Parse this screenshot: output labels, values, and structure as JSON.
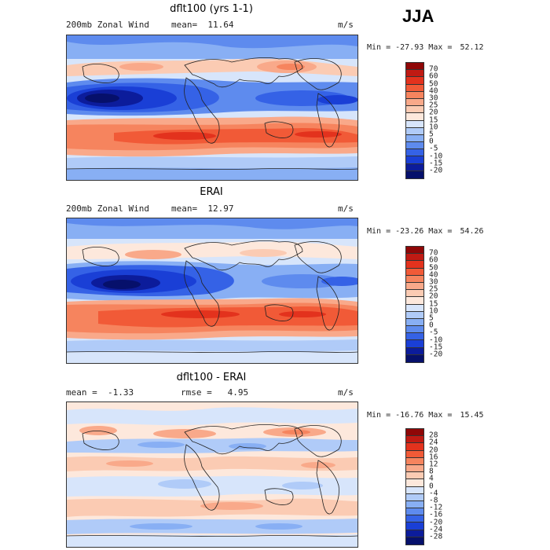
{
  "season": "JJA",
  "panels": [
    {
      "title": "dflt100 (yrs 1-1)",
      "left_label": "200mb Zonal Wind",
      "stat_label": "mean=",
      "stat_value": "11.64",
      "stat2_label": "",
      "stat2_value": "",
      "units": "m/s",
      "min_label": "Min =",
      "min_value": "-27.93",
      "max_label": "Max =",
      "max_value": "52.12",
      "levels": [
        "70",
        "60",
        "50",
        "40",
        "30",
        "25",
        "20",
        "15",
        "10",
        "5",
        "0",
        "-5",
        "-10",
        "-15",
        "-20"
      ],
      "colors": [
        "#8f0707",
        "#c01a13",
        "#e3321d",
        "#f15a37",
        "#f6845e",
        "#f9a98a",
        "#fbcbb3",
        "#fde8dc",
        "#d7e5fb",
        "#b0cbf8",
        "#88aff4",
        "#5e8bee",
        "#3562e6",
        "#1a3fd6",
        "#0c1c9b",
        "#06106b"
      ]
    },
    {
      "title": "ERAI",
      "left_label": "200mb Zonal Wind",
      "stat_label": "mean=",
      "stat_value": "12.97",
      "stat2_label": "",
      "stat2_value": "",
      "units": "m/s",
      "min_label": "Min =",
      "min_value": "-23.26",
      "max_label": "Max =",
      "max_value": "54.26",
      "levels": [
        "70",
        "60",
        "50",
        "40",
        "30",
        "25",
        "20",
        "15",
        "10",
        "5",
        "0",
        "-5",
        "-10",
        "-15",
        "-20"
      ],
      "colors": [
        "#8f0707",
        "#c01a13",
        "#e3321d",
        "#f15a37",
        "#f6845e",
        "#f9a98a",
        "#fbcbb3",
        "#fde8dc",
        "#d7e5fb",
        "#b0cbf8",
        "#88aff4",
        "#5e8bee",
        "#3562e6",
        "#1a3fd6",
        "#0c1c9b",
        "#06106b"
      ]
    },
    {
      "title": "dflt100 - ERAI",
      "left_label": "",
      "stat_label": "mean =",
      "stat_value": "-1.33",
      "stat2_label": "rmse =",
      "stat2_value": "4.95",
      "units": "m/s",
      "min_label": "Min =",
      "min_value": "-16.76",
      "max_label": "Max =",
      "max_value": "15.45",
      "levels": [
        "28",
        "24",
        "20",
        "16",
        "12",
        "8",
        "4",
        "0",
        "-4",
        "-8",
        "-12",
        "-16",
        "-20",
        "-24",
        "-28"
      ],
      "colors": [
        "#8f0707",
        "#c01a13",
        "#e3321d",
        "#f15a37",
        "#f6845e",
        "#f9a98a",
        "#fbcbb3",
        "#fde8dc",
        "#d7e5fb",
        "#b0cbf8",
        "#88aff4",
        "#5e8bee",
        "#3562e6",
        "#1a3fd6",
        "#0c1c9b",
        "#06106b"
      ]
    }
  ]
}
